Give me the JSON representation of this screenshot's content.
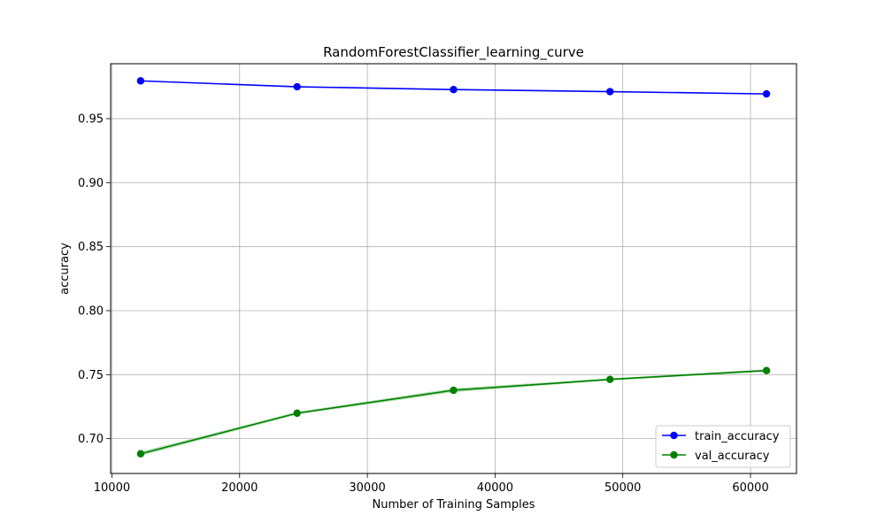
{
  "chart_data": {
    "type": "line",
    "title": "RandomForestClassifier_learning_curve",
    "xlabel": "Number of Training Samples",
    "ylabel": "accuracy",
    "xlim": [
      9900,
      63600
    ],
    "ylim": [
      0.6728,
      0.9929
    ],
    "xticks": [
      10000,
      20000,
      30000,
      40000,
      50000,
      60000
    ],
    "xtick_labels": [
      "10000",
      "20000",
      "30000",
      "40000",
      "50000",
      "60000"
    ],
    "yticks": [
      0.7,
      0.75,
      0.8,
      0.85,
      0.9,
      0.95
    ],
    "ytick_labels": [
      "0.70",
      "0.75",
      "0.80",
      "0.85",
      "0.90",
      "0.95"
    ],
    "grid": true,
    "legend_position": "lower-right",
    "x": [
      12250,
      24500,
      36750,
      49000,
      61250
    ],
    "series": [
      {
        "name": "train_accuracy",
        "color": "#0000ff",
        "band_color": "#9999ff",
        "values": [
          0.9795,
          0.9749,
          0.9727,
          0.9711,
          0.9693
        ],
        "band_low": [
          0.9793,
          0.9747,
          0.9725,
          0.9709,
          0.9691
        ],
        "band_high": [
          0.9797,
          0.9751,
          0.9729,
          0.9713,
          0.9695
        ]
      },
      {
        "name": "val_accuracy",
        "color": "#008000",
        "band_color": "#90d090",
        "values": [
          0.6882,
          0.7199,
          0.7378,
          0.7463,
          0.7532
        ],
        "band_low": [
          0.6865,
          0.7188,
          0.7362,
          0.7455,
          0.7522
        ],
        "band_high": [
          0.6899,
          0.721,
          0.7394,
          0.7471,
          0.7542
        ]
      }
    ]
  }
}
